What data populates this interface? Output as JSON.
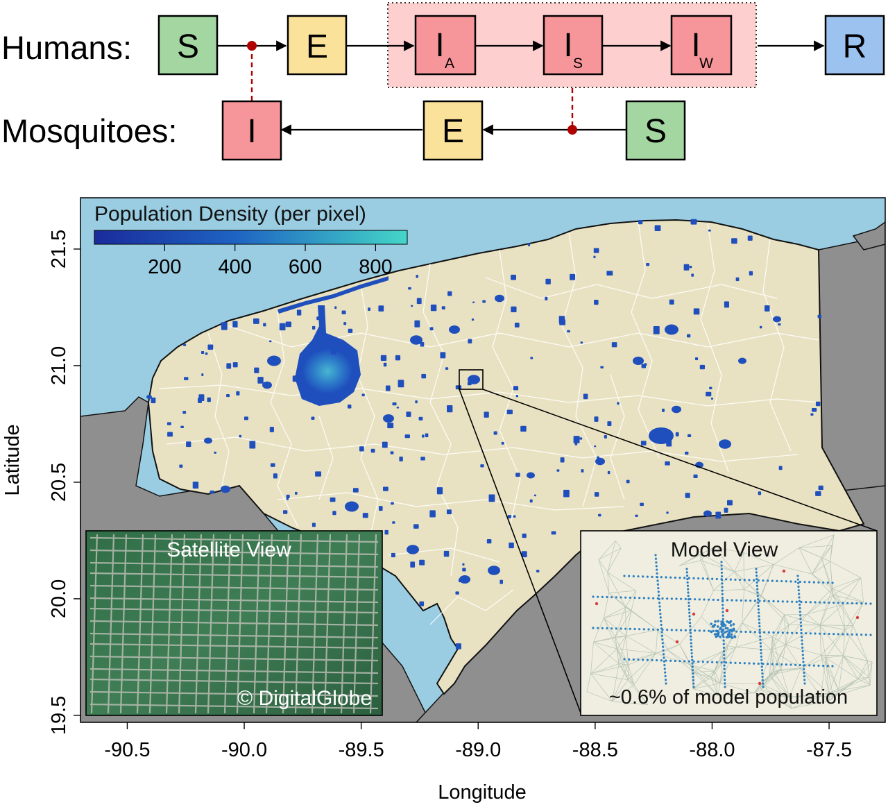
{
  "diagram": {
    "humans_label": "Humans:",
    "mosquitoes_label": "Mosquitoes:",
    "human_compartments": [
      {
        "main": "S",
        "sub": "",
        "color": "#a3d6a1"
      },
      {
        "main": "E",
        "sub": "",
        "color": "#fbe29a"
      },
      {
        "main": "I",
        "sub": "A",
        "color": "#f6959a"
      },
      {
        "main": "I",
        "sub": "S",
        "color": "#f6959a"
      },
      {
        "main": "I",
        "sub": "W",
        "color": "#f6959a"
      },
      {
        "main": "R",
        "sub": "",
        "color": "#9cc2ef"
      }
    ],
    "mosquito_compartments": [
      {
        "main": "I",
        "color": "#f6959a"
      },
      {
        "main": "E",
        "color": "#fbe29a"
      },
      {
        "main": "S",
        "color": "#a3d6a1"
      }
    ],
    "infectious_group_color": "#fdcfcf",
    "transmission_color": "#b00000"
  },
  "map": {
    "colorbar": {
      "title": "Population Density (per pixel)",
      "ticks": [
        "200",
        "400",
        "600",
        "800"
      ],
      "color_low": "#1a2b9c",
      "color_high": "#45d6c8"
    },
    "axes": {
      "xlabel": "Longitude",
      "ylabel": "Latitude",
      "x_ticks": [
        "-90.5",
        "-90.0",
        "-89.5",
        "-89.0",
        "-88.5",
        "-88.0",
        "-87.5"
      ],
      "y_ticks": [
        "19.5",
        "20.0",
        "20.5",
        "21.0",
        "21.5"
      ],
      "xlim": [
        -90.7,
        -87.26
      ],
      "ylim": [
        19.47,
        21.72
      ]
    },
    "colors": {
      "sea": "#9acde2",
      "land": "#e9e2c2",
      "other_land": "#8f8f8f",
      "settlement": "#1f4fbd"
    },
    "insets": {
      "satellite_title": "Satellite View",
      "satellite_credit": "© DigitalGlobe",
      "model_title": "Model View",
      "model_caption": "~0.6% of model population"
    }
  }
}
